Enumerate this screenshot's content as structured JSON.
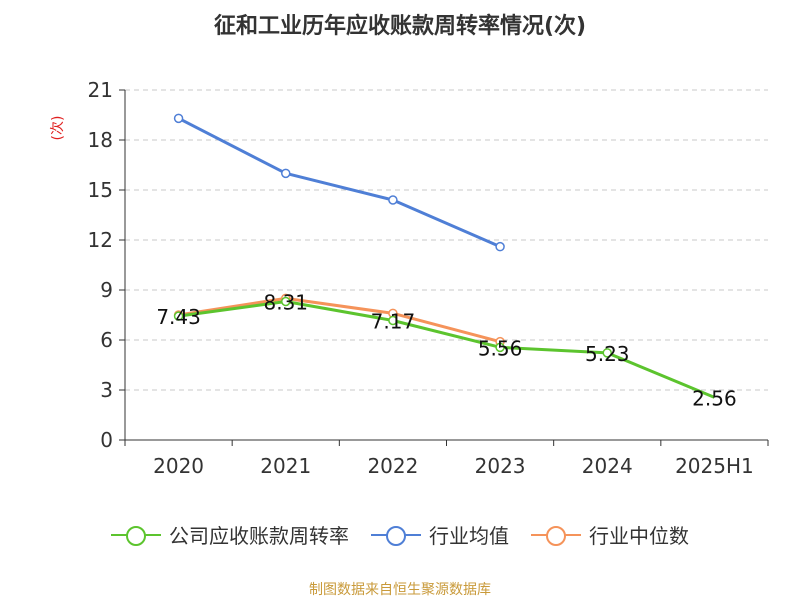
{
  "chart_data": {
    "type": "line",
    "title": "征和工业历年应收账款周转率情况(次)",
    "ylabel": "(次)",
    "categories": [
      "2020",
      "2021",
      "2022",
      "2023",
      "2024",
      "2025H1"
    ],
    "ylim": [
      0,
      21
    ],
    "yticks": [
      0,
      3,
      6,
      9,
      12,
      15,
      18,
      21
    ],
    "grid": true,
    "legend_position": "bottom",
    "series": [
      {
        "name": "公司应收账款周转率",
        "color": "#5cc42e",
        "values": [
          7.43,
          8.31,
          7.17,
          5.56,
          5.23,
          2.56
        ],
        "labels": [
          "7.43",
          "8.31",
          "7.17",
          "5.56",
          "5.23",
          "2.56"
        ]
      },
      {
        "name": "行业均值",
        "color": "#4f7fd6",
        "values": [
          19.3,
          16.0,
          14.4,
          11.6,
          null,
          null
        ]
      },
      {
        "name": "行业中位数",
        "color": "#f5935a",
        "values": [
          7.5,
          8.5,
          7.6,
          5.9,
          null,
          null
        ]
      }
    ]
  },
  "footer": {
    "source": "制图数据来自恒生聚源数据库"
  }
}
